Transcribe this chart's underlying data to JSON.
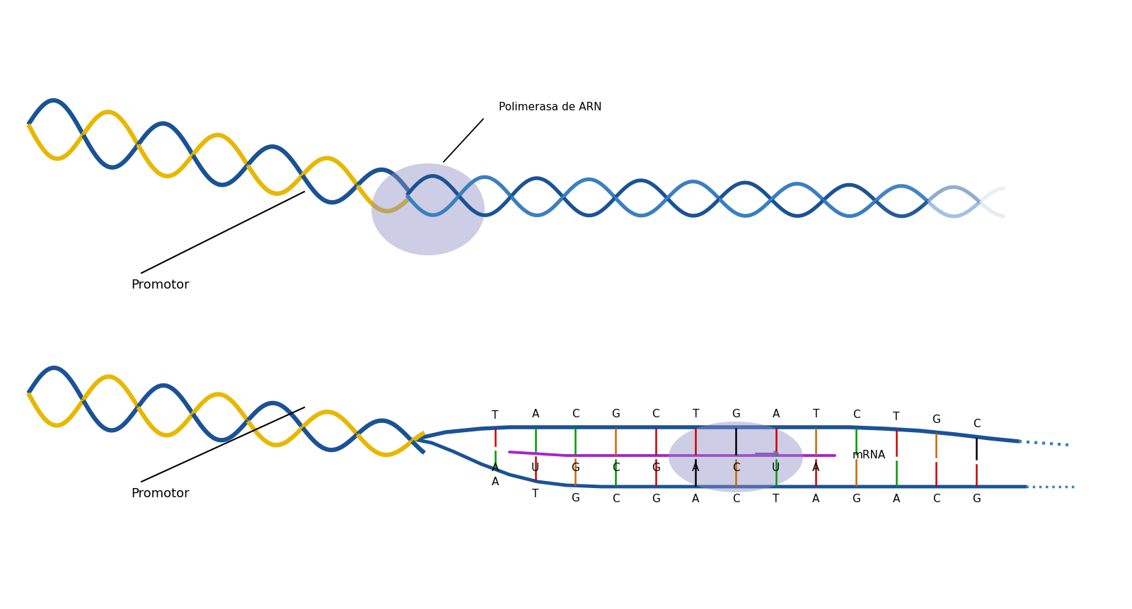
{
  "bg_color": "#ffffff",
  "polymerase_label": "Polimerasa de ARN",
  "promotor_label": "Promotor",
  "mrna_label": "mRNA",
  "top_seq": [
    "T",
    "A",
    "C",
    "G",
    "C",
    "T",
    "G",
    "A",
    "T",
    "C",
    "T",
    "G",
    "C"
  ],
  "mrna_seq": [
    "A",
    "U",
    "G",
    "C",
    "G",
    "A",
    "C",
    "U",
    "A"
  ],
  "bot_seq": [
    "A",
    "T",
    "G",
    "C",
    "G",
    "A",
    "C",
    "T",
    "A",
    "G",
    "A",
    "C",
    "G"
  ],
  "dna_blue": "#1a5296",
  "dna_yellow": "#e8b800",
  "dna_blue2": "#3a7fc1",
  "polymerase_color": "#9090c8",
  "polymerase_alpha": 0.45,
  "mrna_color": "#aa22cc",
  "tick_colors": [
    "#cc0000",
    "#009900",
    "#cc6600",
    "#000000",
    "#cc0000",
    "#009900",
    "#cc6600",
    "#000000",
    "#cc0000",
    "#009900",
    "#cc6600",
    "#000000",
    "#cc0000",
    "#009900"
  ],
  "tick_colors2": [
    "#009900",
    "#cc0000",
    "#000000",
    "#cc6600",
    "#009900",
    "#cc0000",
    "#000000",
    "#cc6600",
    "#009900",
    "#cc0000",
    "#000000",
    "#cc6600",
    "#009900",
    "#cc0000"
  ]
}
